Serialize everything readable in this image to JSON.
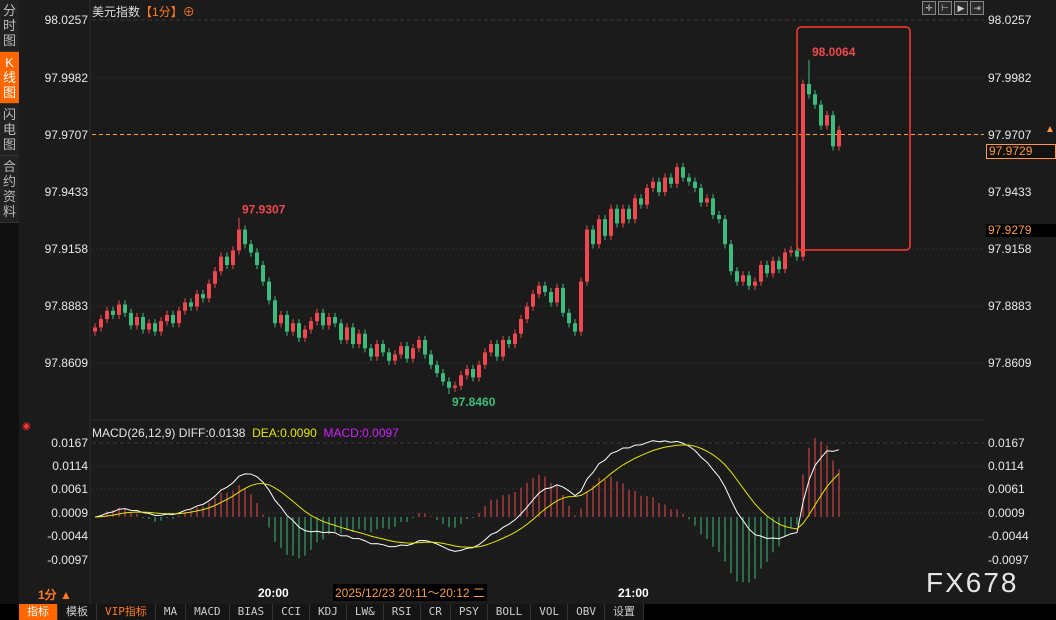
{
  "sidebar": {
    "items": [
      {
        "label": "分时图"
      },
      {
        "label": "K线图",
        "active": true
      },
      {
        "label": "闪电图"
      },
      {
        "label": "合约资料"
      }
    ]
  },
  "header": {
    "name": "美元指数",
    "period": "【1分】",
    "add_icon": "⊕"
  },
  "toolbar_icons": [
    "crosshair-icon",
    "zoom-in-icon",
    "play-icon",
    "jump-to-end-icon"
  ],
  "price_axis": {
    "labels": [
      "98.0257",
      "97.9982",
      "97.9707",
      "97.9433",
      "97.9158",
      "97.8883",
      "97.8609"
    ]
  },
  "current_price": "97.9729",
  "cursor_price": "97.9279",
  "dashed_price": "97.9707",
  "annotations": {
    "high1": "97.9307",
    "low": "97.8460",
    "high2": "98.0064"
  },
  "macd": {
    "label": "MACD(26,12,9)",
    "diff": "DIFF:0.0138",
    "dea": "DEA:0.0090",
    "macd": "MACD:0.0097",
    "axis": [
      "0.0167",
      "0.0114",
      "0.0061",
      "0.0009",
      "-0.0044",
      "-0.0097"
    ]
  },
  "time_axis": [
    "20:00",
    "21:00"
  ],
  "cursor_time": "2025/12/23 20:11～20:12 二",
  "period_selector": "1分 ▲",
  "watermark": "FX678",
  "bottom_tabs": [
    "指标",
    "模板",
    "VIP指标",
    "MA",
    "MACD",
    "BIAS",
    "CCI",
    "KDJ",
    "LW&",
    "RSI",
    "CR",
    "PSY",
    "BOLL",
    "VOL",
    "OBV",
    "设置"
  ],
  "colors": {
    "up": "#f0484e",
    "down": "#3dbd7d",
    "accent": "#ff6600",
    "diff": "#ffffff",
    "dea": "#e6e600",
    "macd": "#d020ff"
  },
  "chart_data": {
    "type": "candlestick",
    "interval": "1m",
    "closes": [
      97.878,
      97.882,
      97.886,
      97.884,
      97.889,
      97.885,
      97.879,
      97.883,
      97.877,
      97.88,
      97.876,
      97.881,
      97.884,
      97.88,
      97.886,
      97.89,
      97.888,
      97.894,
      97.892,
      97.899,
      97.905,
      97.912,
      97.908,
      97.915,
      97.925,
      97.918,
      97.914,
      97.908,
      97.9,
      97.891,
      97.88,
      97.884,
      97.876,
      97.88,
      97.873,
      97.877,
      97.881,
      97.885,
      97.879,
      97.883,
      97.88,
      97.872,
      97.878,
      97.87,
      97.875,
      97.868,
      97.864,
      97.87,
      97.866,
      97.862,
      97.865,
      97.869,
      97.863,
      97.868,
      97.872,
      97.865,
      97.86,
      97.856,
      97.852,
      97.849,
      97.85,
      97.855,
      97.858,
      97.854,
      97.86,
      97.866,
      97.87,
      97.864,
      97.872,
      97.87,
      97.875,
      97.882,
      97.888,
      97.894,
      97.898,
      97.895,
      97.89,
      97.897,
      97.885,
      97.88,
      97.876,
      97.9,
      97.925,
      97.918,
      97.93,
      97.922,
      97.935,
      97.928,
      97.935,
      97.93,
      97.94,
      97.937,
      97.945,
      97.948,
      97.943,
      97.95,
      97.947,
      97.955,
      97.95,
      97.948,
      97.945,
      97.938,
      97.94,
      97.932,
      97.93,
      97.918,
      97.905,
      97.9,
      97.903,
      97.898,
      97.9,
      97.908,
      97.904,
      97.91,
      97.906,
      97.914,
      97.915,
      97.912,
      97.995,
      97.99,
      97.985,
      97.975,
      97.98,
      97.965,
      97.9729
    ],
    "first_open": 97.876,
    "ylim": [
      97.8609,
      98.0257
    ],
    "macd_ylim": [
      -0.0097,
      0.0167
    ]
  }
}
